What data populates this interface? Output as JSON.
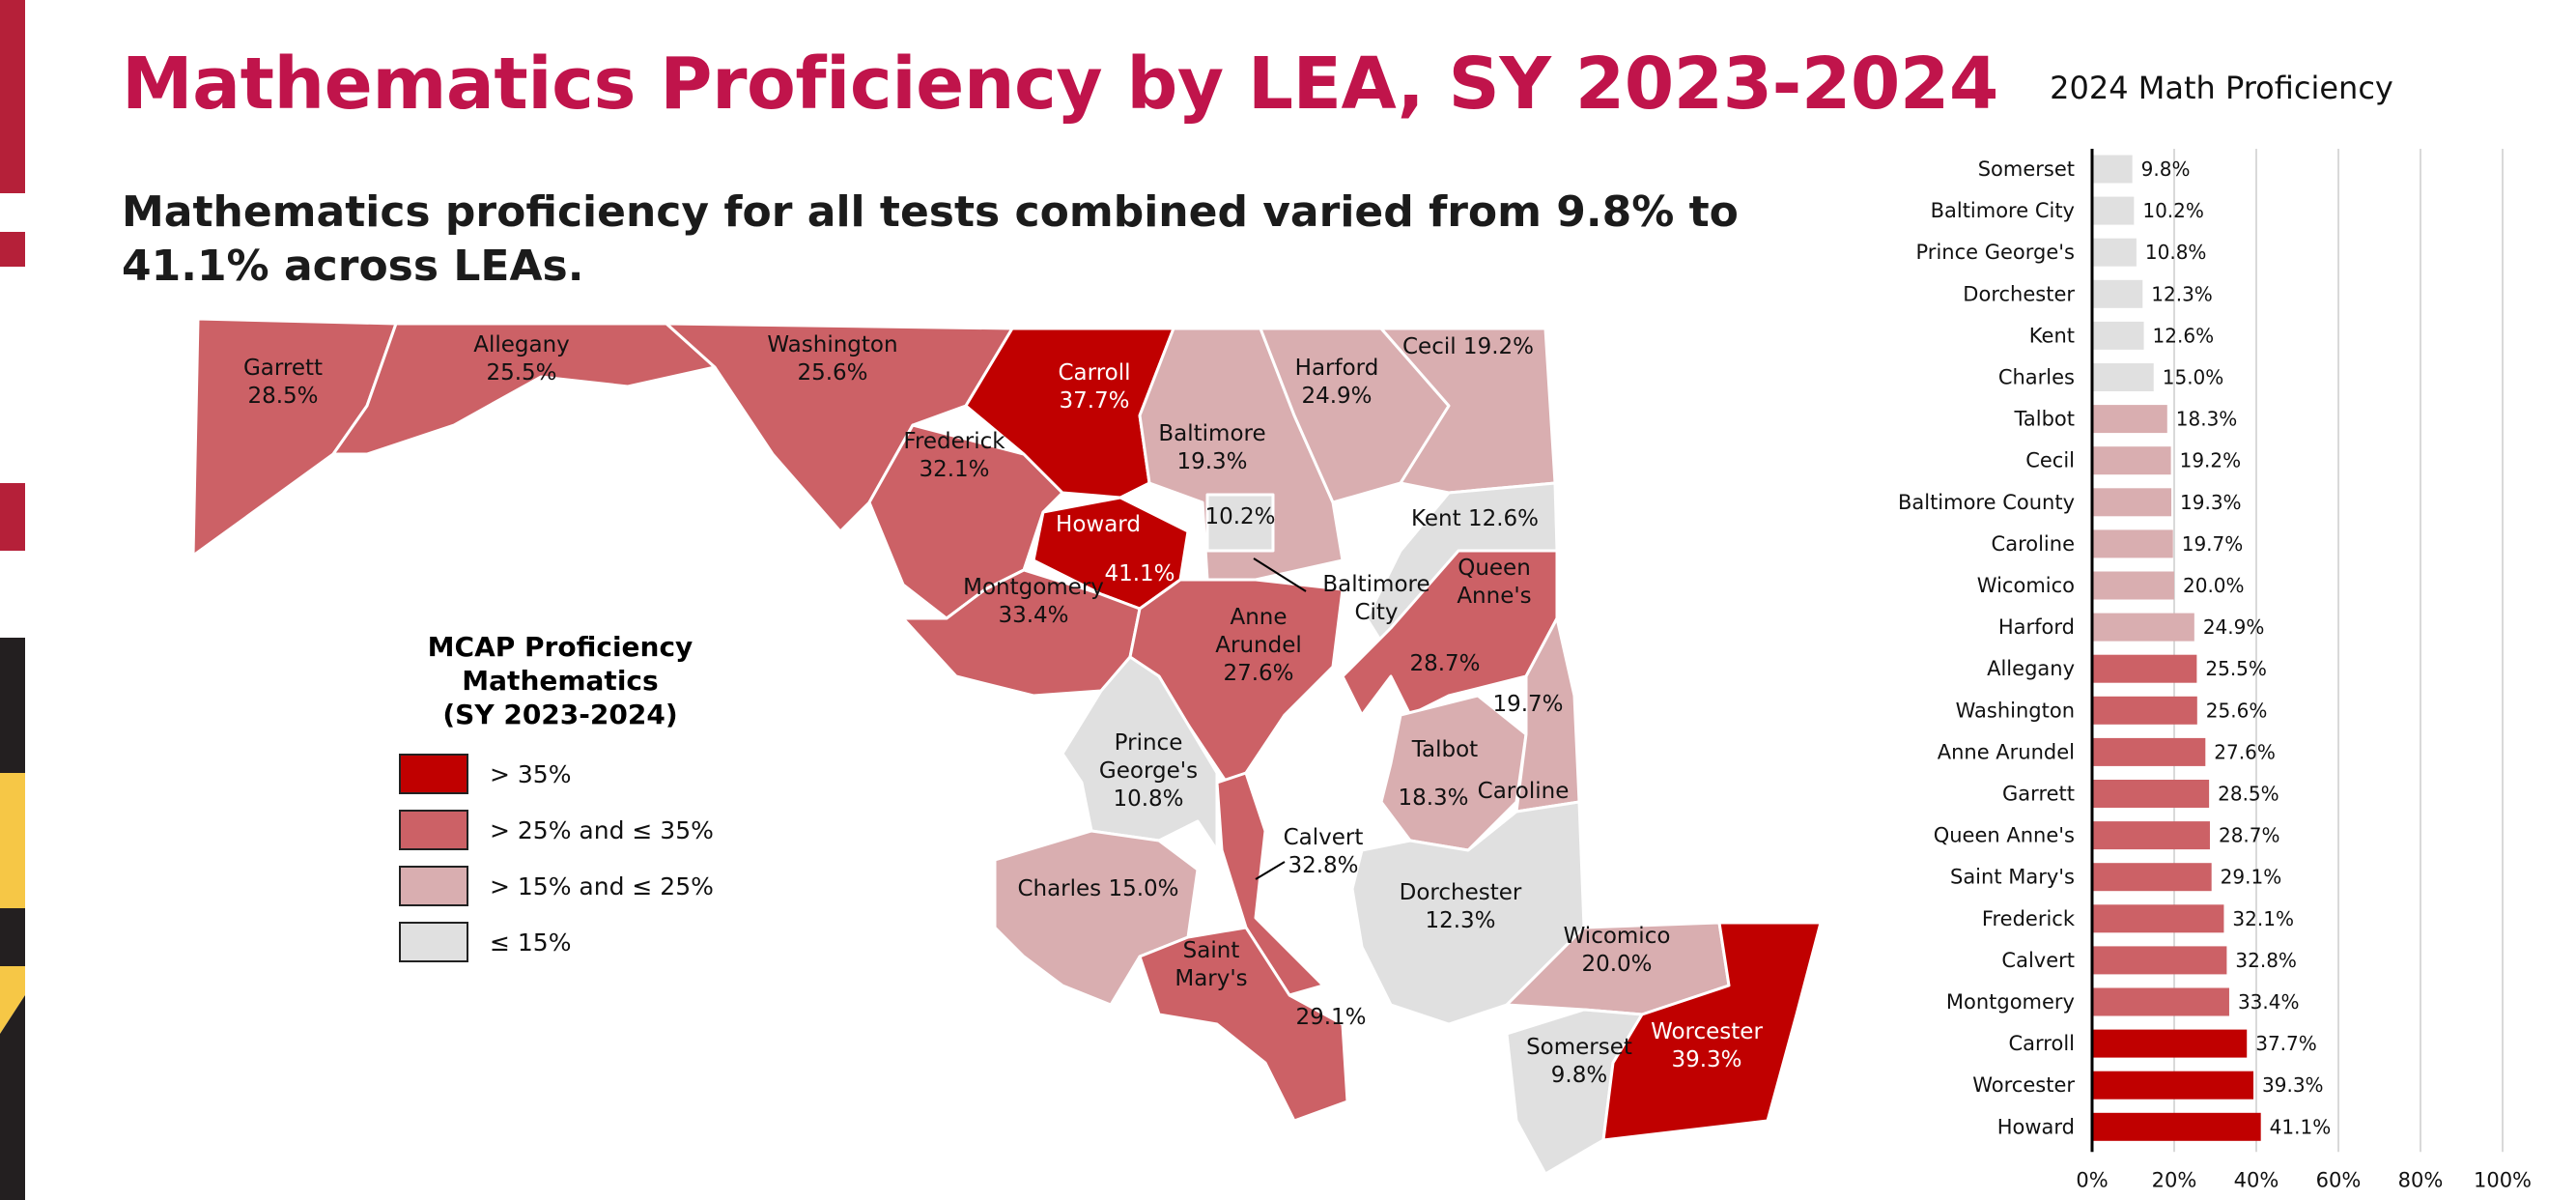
{
  "page": {
    "title": "Mathematics Proficiency by LEA, SY 2023-2024",
    "subtitle": "Mathematics proficiency for all tests combined varied from 9.8% to 41.1% across LEAs."
  },
  "colors": {
    "title": "#c0144b",
    "tier_gt35": "#c00000",
    "tier_25_35": "#cc6166",
    "tier_15_25": "#d9aeb0",
    "tier_le15": "#e0e0e0",
    "map_border": "#ffffff",
    "stripe_red": "#b52039",
    "stripe_yellow": "#f6c746",
    "stripe_black": "#231f20"
  },
  "legend": {
    "title": "MCAP Proficiency\nMathematics\n(SY 2023-2024)",
    "items": [
      {
        "label": "> 35%",
        "color": "#c00000"
      },
      {
        "label": "> 25% and ≤ 35%",
        "color": "#cc6166"
      },
      {
        "label": "> 15% and ≤ 25%",
        "color": "#d9aeb0"
      },
      {
        "label": "≤ 15%",
        "color": "#e0e0e0"
      }
    ]
  },
  "map_labels": [
    {
      "lines": [
        "Garrett",
        "28.5%"
      ],
      "light": false
    },
    {
      "lines": [
        "Allegany",
        "25.5%"
      ],
      "light": false
    },
    {
      "lines": [
        "Washington",
        "25.6%"
      ],
      "light": false
    },
    {
      "lines": [
        "Carroll",
        "37.7%"
      ],
      "light": true
    },
    {
      "lines": [
        "Harford",
        "24.9%"
      ],
      "light": false
    },
    {
      "lines": [
        "Cecil 19.2%"
      ],
      "light": false
    },
    {
      "lines": [
        "Frederick",
        "32.1%"
      ],
      "light": false
    },
    {
      "lines": [
        "Baltimore",
        "19.3%"
      ],
      "light": false
    },
    {
      "lines": [
        "Howard"
      ],
      "light": true
    },
    {
      "lines": [
        "41.1%"
      ],
      "light": true
    },
    {
      "lines": [
        "10.2%"
      ],
      "light": false
    },
    {
      "lines": [
        "Baltimore",
        "City"
      ],
      "light": false
    },
    {
      "lines": [
        "Kent 12.6%"
      ],
      "light": false
    },
    {
      "lines": [
        "Queen",
        "Anne's"
      ],
      "light": false
    },
    {
      "lines": [
        "28.7%"
      ],
      "light": false
    },
    {
      "lines": [
        "Montgomery",
        "33.4%"
      ],
      "light": false
    },
    {
      "lines": [
        "Anne",
        "Arundel",
        "27.6%"
      ],
      "light": false
    },
    {
      "lines": [
        "19.7%"
      ],
      "light": false
    },
    {
      "lines": [
        "Talbot"
      ],
      "light": false
    },
    {
      "lines": [
        "18.3%"
      ],
      "light": false
    },
    {
      "lines": [
        "Caroline"
      ],
      "light": false
    },
    {
      "lines": [
        "Prince",
        "George's",
        "10.8%"
      ],
      "light": false
    },
    {
      "lines": [
        "Calvert",
        "32.8%"
      ],
      "light": false
    },
    {
      "lines": [
        "Dorchester",
        "12.3%"
      ],
      "light": false
    },
    {
      "lines": [
        "Charles 15.0%"
      ],
      "light": false
    },
    {
      "lines": [
        "Saint",
        "Mary's"
      ],
      "light": false
    },
    {
      "lines": [
        "29.1%"
      ],
      "light": false
    },
    {
      "lines": [
        "Wicomico",
        "20.0%"
      ],
      "light": false
    },
    {
      "lines": [
        "Somerset",
        "9.8%"
      ],
      "light": false
    },
    {
      "lines": [
        "Worcester",
        "39.3%"
      ],
      "light": true
    }
  ],
  "chart_data": {
    "type": "bar",
    "orientation": "horizontal",
    "title": "2024 Math Proficiency",
    "categories": [
      "Somerset",
      "Baltimore City",
      "Prince George's",
      "Dorchester",
      "Kent",
      "Charles",
      "Talbot",
      "Cecil",
      "Baltimore County",
      "Caroline",
      "Wicomico",
      "Harford",
      "Allegany",
      "Washington",
      "Anne Arundel",
      "Garrett",
      "Queen Anne's",
      "Saint Mary's",
      "Frederick",
      "Calvert",
      "Montgomery",
      "Carroll",
      "Worcester",
      "Howard"
    ],
    "values": [
      9.8,
      10.2,
      10.8,
      12.3,
      12.6,
      15.0,
      18.3,
      19.2,
      19.3,
      19.7,
      20.0,
      24.9,
      25.5,
      25.6,
      27.6,
      28.5,
      28.7,
      29.1,
      32.1,
      32.8,
      33.4,
      37.7,
      39.3,
      41.1
    ],
    "data_labels": [
      "9.8%",
      "10.2%",
      "10.8%",
      "12.3%",
      "12.6%",
      "15.0%",
      "18.3%",
      "19.2%",
      "19.3%",
      "19.7%",
      "20.0%",
      "24.9%",
      "25.5%",
      "25.6%",
      "27.6%",
      "28.5%",
      "28.7%",
      "29.1%",
      "32.1%",
      "32.8%",
      "33.4%",
      "37.7%",
      "39.3%",
      "41.1%"
    ],
    "xlim": [
      0,
      100
    ],
    "xticks": [
      "0%",
      "20%",
      "40%",
      "60%",
      "80%",
      "100%"
    ],
    "grid": true
  }
}
